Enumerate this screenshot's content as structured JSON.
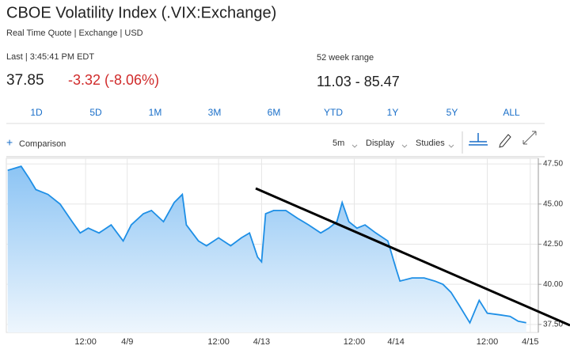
{
  "header": {
    "title": "CBOE Volatility Index (.VIX:Exchange)",
    "subtitle": "Real Time Quote | Exchange | USD",
    "last_label": "Last | 3:45:41 PM EDT",
    "price": "37.85",
    "change": "-3.32 (-8.06%)",
    "range_label": "52 week range",
    "range": "11.03 - 85.47"
  },
  "ranges": [
    "1D",
    "5D",
    "1M",
    "3M",
    "6M",
    "YTD",
    "1Y",
    "5Y",
    "ALL"
  ],
  "toolbar": {
    "comparison": "Comparison",
    "interval": "5m",
    "display": "Display",
    "studies": "Studies"
  },
  "chart_data": {
    "type": "line",
    "x": [
      0.11,
      0.21,
      0.27,
      0.32,
      0.41,
      0.5,
      0.59,
      0.65,
      0.71,
      0.79,
      0.88,
      0.97,
      1.03,
      1.12,
      1.18,
      1.27,
      1.35,
      1.41,
      1.44,
      1.53,
      1.59,
      1.68,
      1.77,
      1.85,
      1.91,
      1.97,
      2.0,
      2.03,
      2.09,
      2.18,
      2.27,
      2.35,
      2.44,
      2.5,
      2.56,
      2.6,
      2.65,
      2.71,
      2.77,
      2.85,
      2.94,
      3.0,
      3.03,
      3.12,
      3.21,
      3.29,
      3.35,
      3.41,
      3.47,
      3.55,
      3.62,
      3.68,
      3.77,
      3.85,
      3.91,
      3.97
    ],
    "series": [
      {
        "name": "VIX",
        "color": "#1e8fe6",
        "values": [
          47.1,
          47.35,
          46.6,
          45.9,
          45.6,
          45.0,
          43.9,
          43.2,
          43.5,
          43.2,
          43.7,
          42.7,
          43.7,
          44.4,
          44.6,
          43.9,
          45.1,
          45.6,
          43.7,
          42.7,
          42.4,
          42.9,
          42.4,
          42.9,
          43.2,
          41.7,
          41.4,
          44.4,
          44.6,
          44.6,
          44.1,
          43.7,
          43.2,
          43.5,
          43.9,
          45.1,
          43.9,
          43.5,
          43.7,
          43.2,
          42.7,
          41.0,
          40.2,
          40.4,
          40.4,
          40.2,
          40.0,
          39.5,
          38.7,
          37.6,
          39.0,
          38.2,
          38.1,
          38.0,
          37.7,
          37.6
        ]
      }
    ],
    "xlim": [
      0.1,
      4.06
    ],
    "xticks": [
      {
        "value": 0.69,
        "label": "12:00"
      },
      {
        "value": 1,
        "label": "4/9"
      },
      {
        "value": 1.68,
        "label": "12:00"
      },
      {
        "value": 2,
        "label": "4/13"
      },
      {
        "value": 2.69,
        "label": "12:00"
      },
      {
        "value": 3,
        "label": "4/14"
      },
      {
        "value": 3.68,
        "label": "12:00"
      },
      {
        "value": 4,
        "label": "4/15"
      }
    ],
    "ylim": [
      37.0,
      47.85
    ],
    "yticks": [
      {
        "value": 37.5,
        "label": "37.50"
      },
      {
        "value": 40,
        "label": "40.00"
      },
      {
        "value": 42.5,
        "label": "42.50"
      },
      {
        "value": 45,
        "label": "45.00"
      },
      {
        "value": 47.5,
        "label": "47.50"
      }
    ],
    "grid": true
  }
}
